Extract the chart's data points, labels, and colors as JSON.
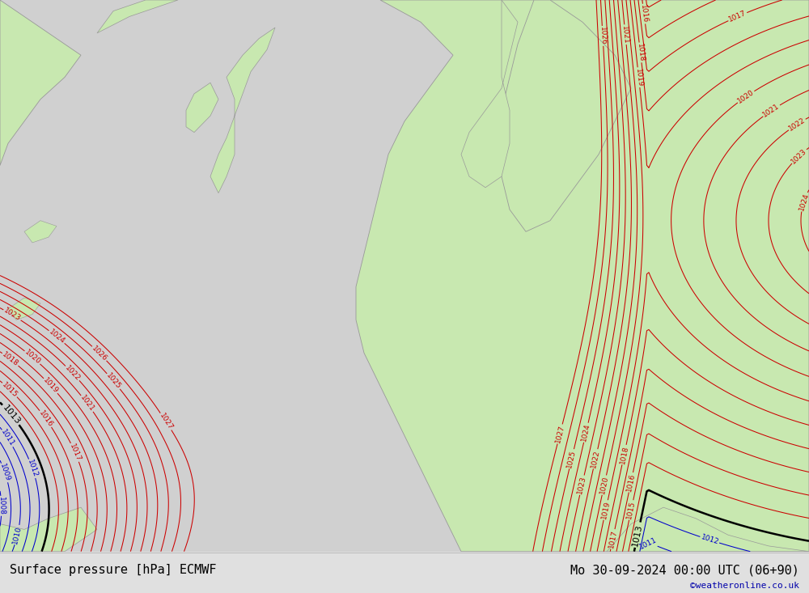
{
  "title_left": "Surface pressure [hPa] ECMWF",
  "title_right": "Mo 30-09-2024 00:00 UTC (06+90)",
  "watermark": "©weatheronline.co.uk",
  "bg_color": "#d0d0d0",
  "land_color": "#c8e8b0",
  "coast_color": "#999999",
  "blue_line_color": "#0000cc",
  "red_line_color": "#cc0000",
  "black_line_color": "#000000",
  "title_color": "#000000",
  "watermark_color": "#0000aa",
  "figsize": [
    10.0,
    7.33
  ],
  "dpi": 100,
  "bottom_bar_color": "#e0e0e0"
}
